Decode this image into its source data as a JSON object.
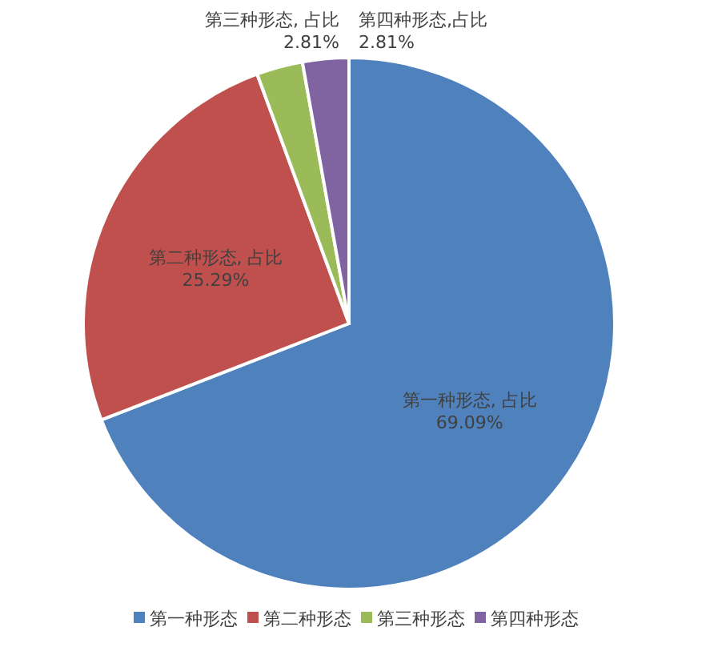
{
  "chart_data": {
    "type": "pie",
    "categories": [
      "第一种形态",
      "第二种形态",
      "第三种形态",
      "第四种形态"
    ],
    "values": [
      69.09,
      25.29,
      2.81,
      2.81
    ],
    "colors": [
      "#4f81bd",
      "#c0504d",
      "#9bbb59",
      "#8064a2"
    ],
    "value_labels": [
      "第一种形态, 占比\n69.09%",
      "第二种形态, 占比\n25.29%",
      "第三种形态, 占比\n2.81%",
      "第四种形态,占比\n2.81%"
    ],
    "legend": "bottom"
  }
}
